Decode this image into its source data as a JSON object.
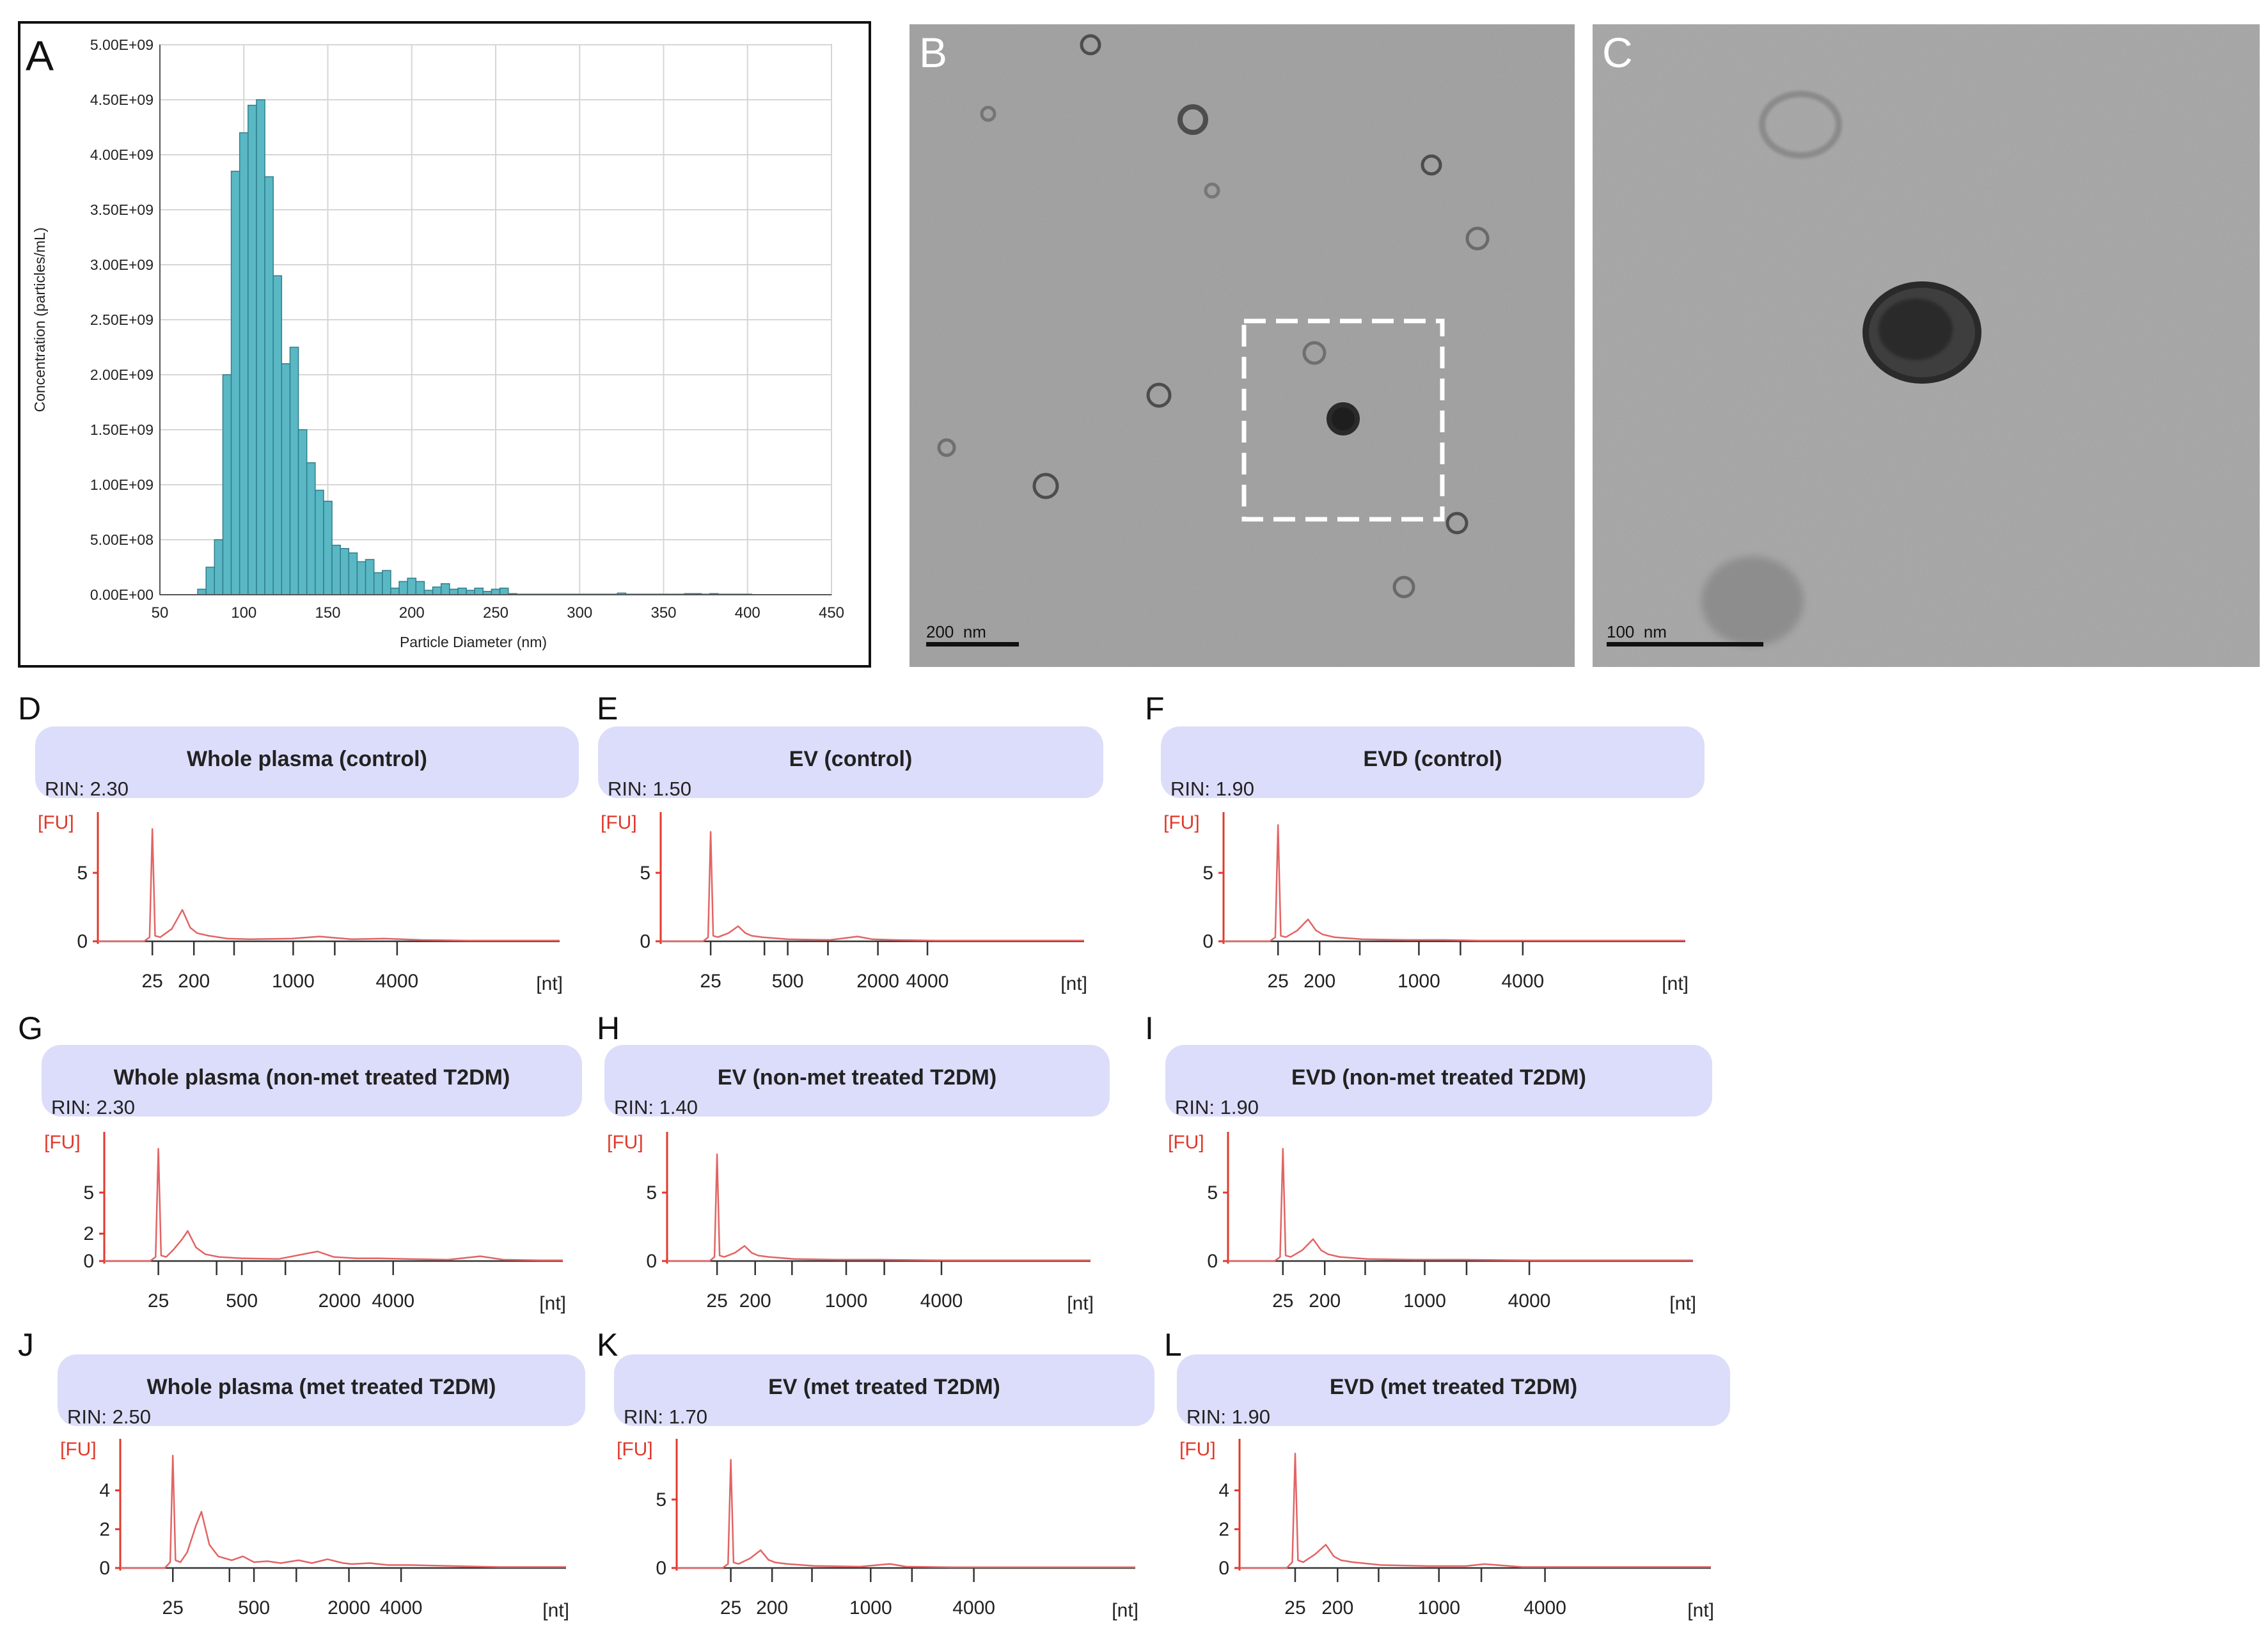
{
  "colors": {
    "hist_fill": "#5ab8c4",
    "hist_stroke": "#2f7e8c",
    "trace": "#e26464",
    "fu_axis": "#e0392b",
    "header_fill": "#dcddfa",
    "em_bg": "#9a9a9a"
  },
  "chart_data": [
    {
      "panel": "A",
      "type": "bar",
      "xlabel": "Particle Diameter (nm)",
      "ylabel": "Concentration (particles/mL)",
      "xlim": [
        50,
        450
      ],
      "ylim": [
        0,
        5000000000
      ],
      "xticks": [
        50,
        100,
        150,
        200,
        250,
        300,
        350,
        400,
        450
      ],
      "yticks": [
        0,
        500000000,
        1000000000,
        1500000000,
        2000000000,
        2500000000,
        3000000000,
        3500000000,
        4000000000,
        4500000000,
        5000000000
      ],
      "ytick_labels": [
        "0.00E+00",
        "5.00E+08",
        "1.00E+09",
        "1.50E+09",
        "2.00E+09",
        "2.50E+09",
        "3.00E+09",
        "3.50E+09",
        "4.00E+09",
        "4.50E+09",
        "5.00E+09"
      ],
      "grid": true,
      "x": [
        75,
        80,
        85,
        90,
        95,
        100,
        105,
        110,
        115,
        120,
        125,
        130,
        135,
        140,
        145,
        150,
        155,
        160,
        165,
        170,
        175,
        180,
        185,
        190,
        195,
        200,
        205,
        210,
        215,
        220,
        225,
        230,
        235,
        240,
        245,
        250,
        255,
        260,
        265,
        270,
        275,
        280,
        285,
        290,
        295,
        300,
        305,
        310,
        315,
        320,
        325,
        330,
        335,
        340,
        345,
        350,
        355,
        360,
        365,
        370,
        375,
        380,
        385,
        390,
        395,
        400
      ],
      "values": [
        50000000,
        250000000,
        500000000,
        2000000000,
        3850000000,
        4200000000,
        4450000000,
        4500000000,
        3800000000,
        2900000000,
        2100000000,
        2250000000,
        1500000000,
        1200000000,
        950000000,
        850000000,
        450000000,
        420000000,
        380000000,
        300000000,
        320000000,
        200000000,
        220000000,
        60000000,
        120000000,
        150000000,
        120000000,
        40000000,
        70000000,
        100000000,
        50000000,
        60000000,
        40000000,
        60000000,
        30000000,
        50000000,
        60000000,
        10000000,
        5000000,
        5000000,
        5000000,
        5000000,
        5000000,
        5000000,
        5000000,
        5000000,
        5000000,
        5000000,
        5000000,
        5000000,
        15000000,
        5000000,
        5000000,
        5000000,
        5000000,
        5000000,
        5000000,
        5000000,
        10000000,
        10000000,
        5000000,
        10000000,
        5000000,
        5000000,
        5000000,
        5000000
      ]
    },
    {
      "panel": "D",
      "type": "line",
      "title": "Whole plasma (control)",
      "rin": "RIN: 2.30",
      "ylabel": "[FU]",
      "xlabel": "[nt]",
      "yticks": [
        0,
        5
      ],
      "ytick_labels": [
        "0",
        "5"
      ],
      "ylim": [
        0,
        8.5
      ],
      "xticks": [
        {
          "pos": 0.118,
          "label": "25"
        },
        {
          "pos": 0.208,
          "label": "200"
        },
        {
          "pos": 0.295,
          "label": ""
        },
        {
          "pos": 0.423,
          "label": "1000"
        },
        {
          "pos": 0.513,
          "label": ""
        },
        {
          "pos": 0.648,
          "label": "4000"
        }
      ],
      "x": [
        0,
        0.1,
        0.112,
        0.118,
        0.124,
        0.135,
        0.16,
        0.183,
        0.2,
        0.215,
        0.24,
        0.28,
        0.33,
        0.42,
        0.48,
        0.55,
        0.62,
        0.7,
        0.8,
        0.9,
        1.0
      ],
      "values": [
        0,
        0,
        0.3,
        8.2,
        0.4,
        0.3,
        0.9,
        2.3,
        1.0,
        0.6,
        0.4,
        0.2,
        0.15,
        0.2,
        0.35,
        0.15,
        0.2,
        0.1,
        0.05,
        0.05,
        0.05
      ]
    },
    {
      "panel": "E",
      "type": "line",
      "title": "EV (control)",
      "rin": "RIN: 1.50",
      "ylabel": "[FU]",
      "xlabel": "[nt]",
      "yticks": [
        0,
        5
      ],
      "ytick_labels": [
        "0",
        "5"
      ],
      "ylim": [
        0,
        8.5
      ],
      "xticks": [
        {
          "pos": 0.118,
          "label": "25"
        },
        {
          "pos": 0.245,
          "label": ""
        },
        {
          "pos": 0.3,
          "label": "500"
        },
        {
          "pos": 0.395,
          "label": ""
        },
        {
          "pos": 0.513,
          "label": "2000"
        },
        {
          "pos": 0.63,
          "label": "4000"
        }
      ],
      "x": [
        0,
        0.1,
        0.112,
        0.118,
        0.124,
        0.135,
        0.16,
        0.183,
        0.2,
        0.215,
        0.24,
        0.3,
        0.4,
        0.465,
        0.5,
        0.55,
        0.65,
        0.8,
        1.0
      ],
      "values": [
        0,
        0,
        0.3,
        8.0,
        0.4,
        0.3,
        0.6,
        1.1,
        0.6,
        0.4,
        0.3,
        0.15,
        0.1,
        0.35,
        0.15,
        0.1,
        0.05,
        0.05,
        0.05
      ]
    },
    {
      "panel": "F",
      "type": "line",
      "title": "EVD (control)",
      "rin": "RIN: 1.90",
      "ylabel": "[FU]",
      "xlabel": "[nt]",
      "yticks": [
        0,
        5
      ],
      "ytick_labels": [
        "0",
        "5"
      ],
      "ylim": [
        0,
        8.5
      ],
      "xticks": [
        {
          "pos": 0.118,
          "label": "25"
        },
        {
          "pos": 0.208,
          "label": "200"
        },
        {
          "pos": 0.295,
          "label": ""
        },
        {
          "pos": 0.423,
          "label": "1000"
        },
        {
          "pos": 0.513,
          "label": ""
        },
        {
          "pos": 0.648,
          "label": "4000"
        }
      ],
      "x": [
        0,
        0.1,
        0.112,
        0.118,
        0.124,
        0.135,
        0.16,
        0.183,
        0.2,
        0.215,
        0.24,
        0.3,
        0.4,
        0.48,
        0.55,
        0.7,
        0.85,
        1.0
      ],
      "values": [
        0,
        0,
        0.3,
        8.5,
        0.4,
        0.3,
        0.8,
        1.6,
        0.8,
        0.5,
        0.3,
        0.15,
        0.1,
        0.1,
        0.05,
        0.05,
        0.05,
        0.05
      ]
    },
    {
      "panel": "G",
      "type": "line",
      "title": "Whole plasma (non-met treated T2DM)",
      "rin": "RIN: 2.30",
      "ylabel": "[FU]",
      "xlabel": "[nt]",
      "yticks": [
        0,
        2,
        5
      ],
      "ytick_labels": [
        "0",
        "2",
        "5"
      ],
      "ylim": [
        0,
        8.5
      ],
      "xticks": [
        {
          "pos": 0.118,
          "label": "25"
        },
        {
          "pos": 0.245,
          "label": ""
        },
        {
          "pos": 0.3,
          "label": "500"
        },
        {
          "pos": 0.395,
          "label": ""
        },
        {
          "pos": 0.513,
          "label": "2000"
        },
        {
          "pos": 0.63,
          "label": "4000"
        }
      ],
      "x": [
        0,
        0.1,
        0.112,
        0.118,
        0.124,
        0.135,
        0.15,
        0.17,
        0.182,
        0.2,
        0.22,
        0.25,
        0.3,
        0.38,
        0.465,
        0.5,
        0.55,
        0.6,
        0.66,
        0.75,
        0.82,
        0.87,
        0.95,
        1.0
      ],
      "values": [
        0,
        0,
        0.3,
        8.2,
        0.4,
        0.3,
        0.8,
        1.6,
        2.2,
        1.0,
        0.5,
        0.3,
        0.2,
        0.15,
        0.7,
        0.3,
        0.2,
        0.2,
        0.15,
        0.1,
        0.35,
        0.1,
        0.05,
        0.05
      ]
    },
    {
      "panel": "H",
      "type": "line",
      "title": "EV (non-met treated T2DM)",
      "rin": "RIN: 1.40",
      "ylabel": "[FU]",
      "xlabel": "[nt]",
      "yticks": [
        0,
        5
      ],
      "ytick_labels": [
        "0",
        "5"
      ],
      "ylim": [
        0,
        8.5
      ],
      "xticks": [
        {
          "pos": 0.118,
          "label": "25"
        },
        {
          "pos": 0.208,
          "label": "200"
        },
        {
          "pos": 0.295,
          "label": ""
        },
        {
          "pos": 0.423,
          "label": "1000"
        },
        {
          "pos": 0.513,
          "label": ""
        },
        {
          "pos": 0.648,
          "label": "4000"
        }
      ],
      "x": [
        0,
        0.1,
        0.112,
        0.118,
        0.124,
        0.135,
        0.16,
        0.183,
        0.2,
        0.215,
        0.24,
        0.3,
        0.4,
        0.5,
        0.65,
        0.8,
        1.0
      ],
      "values": [
        0,
        0,
        0.3,
        7.8,
        0.4,
        0.3,
        0.6,
        1.1,
        0.6,
        0.4,
        0.3,
        0.15,
        0.1,
        0.1,
        0.05,
        0.05,
        0.05
      ]
    },
    {
      "panel": "I",
      "type": "line",
      "title": "EVD (non-met treated T2DM)",
      "rin": "RIN: 1.90",
      "ylabel": "[FU]",
      "xlabel": "[nt]",
      "yticks": [
        0,
        5
      ],
      "ytick_labels": [
        "0",
        "5"
      ],
      "ylim": [
        0,
        8.5
      ],
      "xticks": [
        {
          "pos": 0.118,
          "label": "25"
        },
        {
          "pos": 0.208,
          "label": "200"
        },
        {
          "pos": 0.295,
          "label": ""
        },
        {
          "pos": 0.423,
          "label": "1000"
        },
        {
          "pos": 0.513,
          "label": ""
        },
        {
          "pos": 0.648,
          "label": "4000"
        }
      ],
      "x": [
        0,
        0.1,
        0.112,
        0.118,
        0.124,
        0.135,
        0.16,
        0.183,
        0.2,
        0.215,
        0.24,
        0.3,
        0.4,
        0.5,
        0.65,
        0.8,
        1.0
      ],
      "values": [
        0,
        0,
        0.3,
        8.2,
        0.4,
        0.3,
        0.8,
        1.6,
        0.8,
        0.5,
        0.3,
        0.15,
        0.1,
        0.1,
        0.05,
        0.05,
        0.05
      ]
    },
    {
      "panel": "J",
      "type": "line",
      "title": "Whole plasma (met treated  T2DM)",
      "rin": "RIN: 2.50",
      "ylabel": "[FU]",
      "xlabel": "[nt]",
      "yticks": [
        0,
        2,
        4
      ],
      "ytick_labels": [
        "0",
        "2",
        "4"
      ],
      "ylim": [
        0,
        6
      ],
      "xticks": [
        {
          "pos": 0.118,
          "label": "25"
        },
        {
          "pos": 0.245,
          "label": ""
        },
        {
          "pos": 0.3,
          "label": "500"
        },
        {
          "pos": 0.395,
          "label": ""
        },
        {
          "pos": 0.513,
          "label": "2000"
        },
        {
          "pos": 0.63,
          "label": "4000"
        }
      ],
      "x": [
        0,
        0.1,
        0.112,
        0.118,
        0.124,
        0.135,
        0.15,
        0.17,
        0.182,
        0.2,
        0.22,
        0.25,
        0.275,
        0.3,
        0.33,
        0.36,
        0.4,
        0.43,
        0.465,
        0.5,
        0.52,
        0.56,
        0.6,
        0.65,
        0.75,
        0.85,
        1.0
      ],
      "values": [
        0,
        0,
        0.3,
        5.8,
        0.4,
        0.3,
        0.8,
        2.2,
        2.9,
        1.2,
        0.6,
        0.4,
        0.6,
        0.3,
        0.35,
        0.25,
        0.4,
        0.25,
        0.45,
        0.25,
        0.2,
        0.25,
        0.15,
        0.15,
        0.1,
        0.05,
        0.05
      ]
    },
    {
      "panel": "K",
      "type": "line",
      "title": "EV (met treated  T2DM)",
      "rin": "RIN: 1.70",
      "ylabel": "[FU]",
      "xlabel": "[nt]",
      "yticks": [
        0,
        5
      ],
      "ytick_labels": [
        "0",
        "5"
      ],
      "ylim": [
        0,
        8.5
      ],
      "xticks": [
        {
          "pos": 0.118,
          "label": "25"
        },
        {
          "pos": 0.208,
          "label": "200"
        },
        {
          "pos": 0.295,
          "label": ""
        },
        {
          "pos": 0.423,
          "label": "1000"
        },
        {
          "pos": 0.513,
          "label": ""
        },
        {
          "pos": 0.648,
          "label": "4000"
        }
      ],
      "x": [
        0,
        0.1,
        0.112,
        0.118,
        0.124,
        0.135,
        0.16,
        0.183,
        0.2,
        0.215,
        0.24,
        0.3,
        0.4,
        0.465,
        0.5,
        0.6,
        0.8,
        1.0
      ],
      "values": [
        0,
        0,
        0.3,
        7.9,
        0.4,
        0.3,
        0.7,
        1.3,
        0.6,
        0.4,
        0.3,
        0.15,
        0.1,
        0.3,
        0.1,
        0.05,
        0.05,
        0.05
      ]
    },
    {
      "panel": "L",
      "type": "line",
      "title": "EVD (met treated  T2DM)",
      "rin": "RIN: 1.90",
      "ylabel": "[FU]",
      "xlabel": "[nt]",
      "yticks": [
        0,
        2,
        4
      ],
      "ytick_labels": [
        "0",
        "2",
        "4"
      ],
      "ylim": [
        0,
        6
      ],
      "xticks": [
        {
          "pos": 0.118,
          "label": "25"
        },
        {
          "pos": 0.208,
          "label": "200"
        },
        {
          "pos": 0.295,
          "label": ""
        },
        {
          "pos": 0.423,
          "label": "1000"
        },
        {
          "pos": 0.513,
          "label": ""
        },
        {
          "pos": 0.648,
          "label": "4000"
        }
      ],
      "x": [
        0,
        0.1,
        0.112,
        0.118,
        0.124,
        0.135,
        0.16,
        0.183,
        0.2,
        0.215,
        0.24,
        0.3,
        0.4,
        0.48,
        0.52,
        0.6,
        0.75,
        1.0
      ],
      "values": [
        0,
        0,
        0.3,
        5.9,
        0.4,
        0.3,
        0.7,
        1.2,
        0.6,
        0.4,
        0.3,
        0.15,
        0.1,
        0.1,
        0.2,
        0.05,
        0.05,
        0.05
      ]
    }
  ],
  "micrographs": [
    {
      "panel": "B",
      "scale_label": "200  nm"
    },
    {
      "panel": "C",
      "scale_label": "100  nm"
    }
  ]
}
